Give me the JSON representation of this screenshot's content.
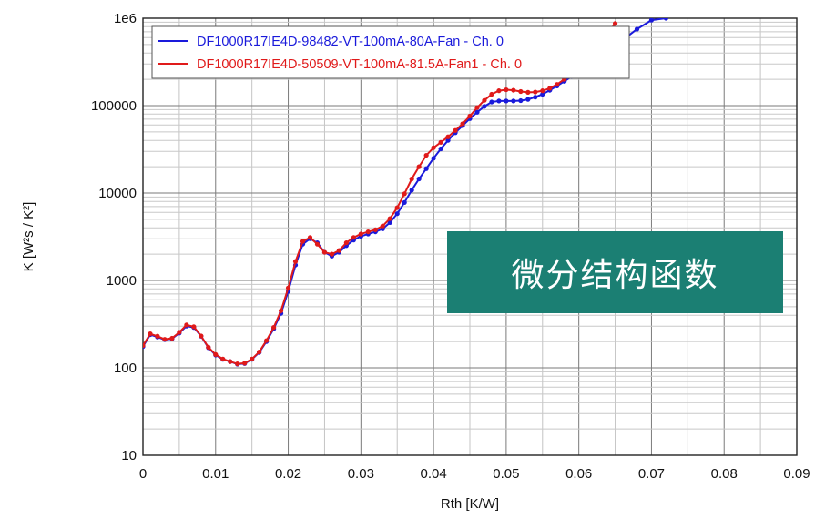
{
  "overlay_label": "微分结构函数",
  "chart_data": {
    "type": "line",
    "title": "",
    "xlabel": "Rth  [K/W]",
    "ylabel": "K  [W²s / K²]",
    "xlim": [
      0,
      0.09
    ],
    "ylim": [
      10,
      1000000
    ],
    "yscale": "log",
    "grid": true,
    "legend_position": "top",
    "x_ticks": [
      "0",
      "0.01",
      "0.02",
      "0.03",
      "0.04",
      "0.05",
      "0.06",
      "0.07",
      "0.08",
      "0.09"
    ],
    "y_ticks": [
      "10",
      "100",
      "1000",
      "10000",
      "100000",
      "1e6"
    ],
    "series": [
      {
        "name": "DF1000R17IE4D-98482-VT-100mA-80A-Fan - Ch. 0",
        "color": "#1a1adb",
        "x": [
          0.0,
          0.001,
          0.002,
          0.003,
          0.004,
          0.005,
          0.006,
          0.007,
          0.008,
          0.009,
          0.01,
          0.011,
          0.012,
          0.013,
          0.014,
          0.015,
          0.016,
          0.017,
          0.018,
          0.019,
          0.02,
          0.021,
          0.022,
          0.023,
          0.024,
          0.025,
          0.026,
          0.027,
          0.028,
          0.029,
          0.03,
          0.031,
          0.032,
          0.033,
          0.034,
          0.035,
          0.036,
          0.037,
          0.038,
          0.039,
          0.04,
          0.041,
          0.042,
          0.043,
          0.044,
          0.045,
          0.046,
          0.047,
          0.048,
          0.049,
          0.05,
          0.051,
          0.052,
          0.053,
          0.054,
          0.055,
          0.056,
          0.057,
          0.058,
          0.059,
          0.06,
          0.062,
          0.064,
          0.066,
          0.068,
          0.07,
          0.072
        ],
        "y": [
          175,
          240,
          225,
          210,
          215,
          250,
          300,
          290,
          230,
          170,
          140,
          125,
          118,
          110,
          112,
          125,
          150,
          200,
          280,
          420,
          750,
          1500,
          2600,
          3000,
          2700,
          2100,
          1900,
          2100,
          2500,
          2900,
          3200,
          3400,
          3600,
          3900,
          4600,
          5800,
          7800,
          10800,
          14500,
          19000,
          25000,
          32000,
          40000,
          49000,
          59000,
          71000,
          84000,
          98000,
          110000,
          113000,
          113000,
          113000,
          114000,
          118000,
          125000,
          135000,
          150000,
          168000,
          190000,
          215000,
          245000,
          320000,
          420000,
          560000,
          750000,
          950000,
          1000000
        ]
      },
      {
        "name": "DF1000R17IE4D-50509-VT-100mA-81.5A-Fan1 - Ch. 0",
        "color": "#e01a1a",
        "x": [
          0.0,
          0.001,
          0.002,
          0.003,
          0.004,
          0.005,
          0.006,
          0.007,
          0.008,
          0.009,
          0.01,
          0.011,
          0.012,
          0.013,
          0.014,
          0.015,
          0.016,
          0.017,
          0.018,
          0.019,
          0.02,
          0.021,
          0.022,
          0.023,
          0.024,
          0.025,
          0.026,
          0.027,
          0.028,
          0.029,
          0.03,
          0.031,
          0.032,
          0.033,
          0.034,
          0.035,
          0.036,
          0.037,
          0.038,
          0.039,
          0.04,
          0.041,
          0.042,
          0.043,
          0.044,
          0.045,
          0.046,
          0.047,
          0.048,
          0.049,
          0.05,
          0.051,
          0.052,
          0.053,
          0.054,
          0.055,
          0.056,
          0.057,
          0.058,
          0.059,
          0.06,
          0.061,
          0.062,
          0.063,
          0.064,
          0.065
        ],
        "y": [
          180,
          245,
          230,
          212,
          218,
          255,
          310,
          295,
          232,
          172,
          142,
          126,
          118,
          111,
          113,
          126,
          152,
          205,
          290,
          450,
          820,
          1650,
          2800,
          3100,
          2600,
          2100,
          2000,
          2200,
          2700,
          3100,
          3400,
          3600,
          3800,
          4200,
          5100,
          6800,
          9800,
          14500,
          20000,
          27000,
          33000,
          38000,
          44000,
          52000,
          62000,
          76000,
          95000,
          115000,
          135000,
          148000,
          152000,
          150000,
          145000,
          142000,
          143000,
          148000,
          158000,
          175000,
          200000,
          235000,
          280000,
          340000,
          420000,
          530000,
          680000,
          870000
        ]
      }
    ]
  }
}
